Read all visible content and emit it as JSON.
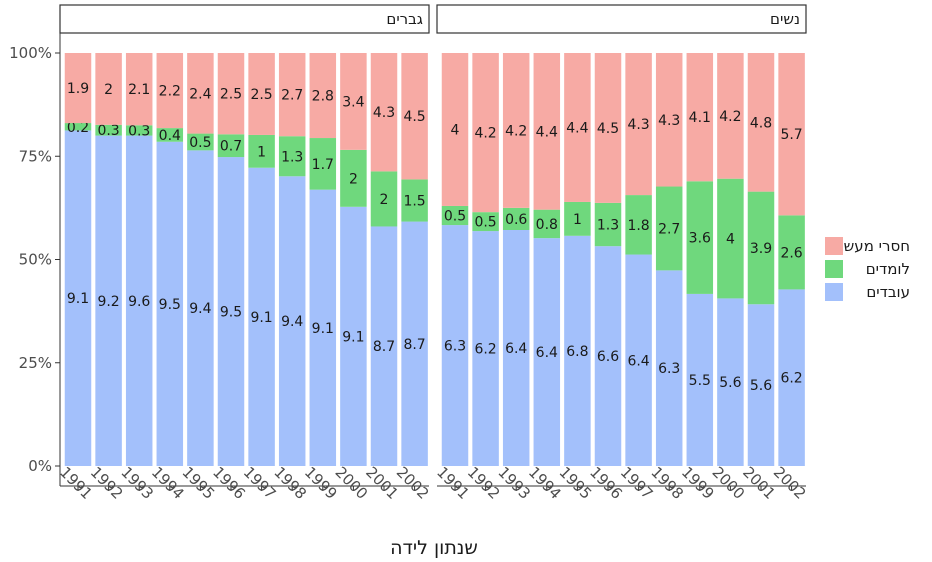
{
  "chart_data": {
    "type": "bar",
    "stacked": "percent",
    "xlabel": "שנתון לידה",
    "ylabel": "",
    "ylim": [
      0,
      1
    ],
    "y_ticks": [
      "0%",
      "25%",
      "50%",
      "75%",
      "100%"
    ],
    "categories": [
      "1991",
      "1992",
      "1993",
      "1994",
      "1995",
      "1996",
      "1997",
      "1998",
      "1999",
      "2000",
      "2001",
      "2002"
    ],
    "legend": {
      "position": "right",
      "entries": [
        "חסרי מעש",
        "לומדים",
        "עובדים"
      ]
    },
    "colors": {
      "עובדים": "#a3c0fb",
      "לומדים": "#6fd87d",
      "חסרי מעש": "#f7aaa4"
    },
    "panels": [
      {
        "title": "גברים",
        "series": [
          {
            "name": "עובדים",
            "values": [
              9.1,
              9.2,
              9.6,
              9.5,
              9.4,
              9.5,
              9.1,
              9.4,
              9.1,
              9.1,
              8.7,
              8.7
            ]
          },
          {
            "name": "לומדים",
            "values": [
              0.2,
              0.3,
              0.3,
              0.4,
              0.5,
              0.7,
              1,
              1.3,
              1.7,
              2,
              2,
              1.5
            ]
          },
          {
            "name": "חסרי מעש",
            "values": [
              1.9,
              2,
              2.1,
              2.2,
              2.4,
              2.5,
              2.5,
              2.7,
              2.8,
              3.4,
              4.3,
              4.5
            ]
          }
        ]
      },
      {
        "title": "נשים",
        "series": [
          {
            "name": "עובדים",
            "values": [
              6.3,
              6.2,
              6.4,
              6.4,
              6.8,
              6.6,
              6.4,
              6.3,
              5.5,
              5.6,
              5.6,
              6.2
            ]
          },
          {
            "name": "לומדים",
            "values": [
              0.5,
              0.5,
              0.6,
              0.8,
              1,
              1.3,
              1.8,
              2.7,
              3.6,
              4,
              3.9,
              2.6
            ]
          },
          {
            "name": "חסרי מעש",
            "values": [
              4,
              4.2,
              4.2,
              4.4,
              4.4,
              4.5,
              4.3,
              4.3,
              4.1,
              4.2,
              4.8,
              5.7
            ]
          }
        ]
      }
    ]
  }
}
